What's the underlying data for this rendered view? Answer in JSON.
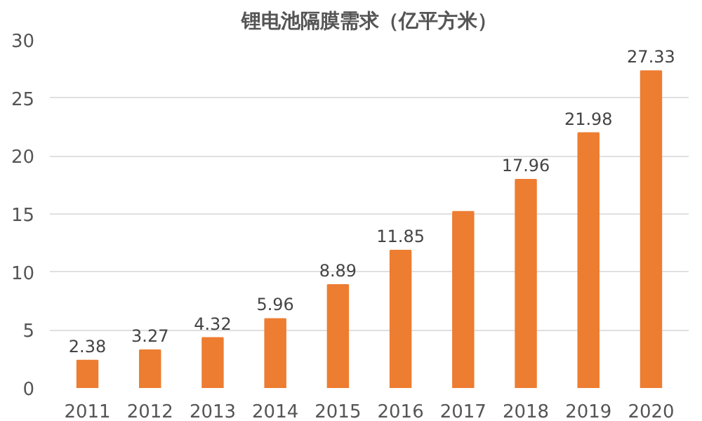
{
  "chart_data": {
    "type": "bar",
    "title": "锂电池隔膜需求（亿平方米）",
    "categories": [
      "2011",
      "2012",
      "2013",
      "2014",
      "2015",
      "2016",
      "2017",
      "2018",
      "2019",
      "2020"
    ],
    "values": [
      2.38,
      3.27,
      4.32,
      5.96,
      8.89,
      11.85,
      15.2,
      17.96,
      21.98,
      27.33
    ],
    "value_labels": [
      "2.38",
      "3.27",
      "4.32",
      "5.96",
      "8.89",
      "11.85",
      null,
      "17.96",
      "21.98",
      "27.33"
    ],
    "color": "#ed7d31",
    "ylim": [
      0,
      30
    ],
    "yticks": [
      0,
      5,
      10,
      15,
      20,
      25,
      30
    ],
    "grid": "y"
  }
}
